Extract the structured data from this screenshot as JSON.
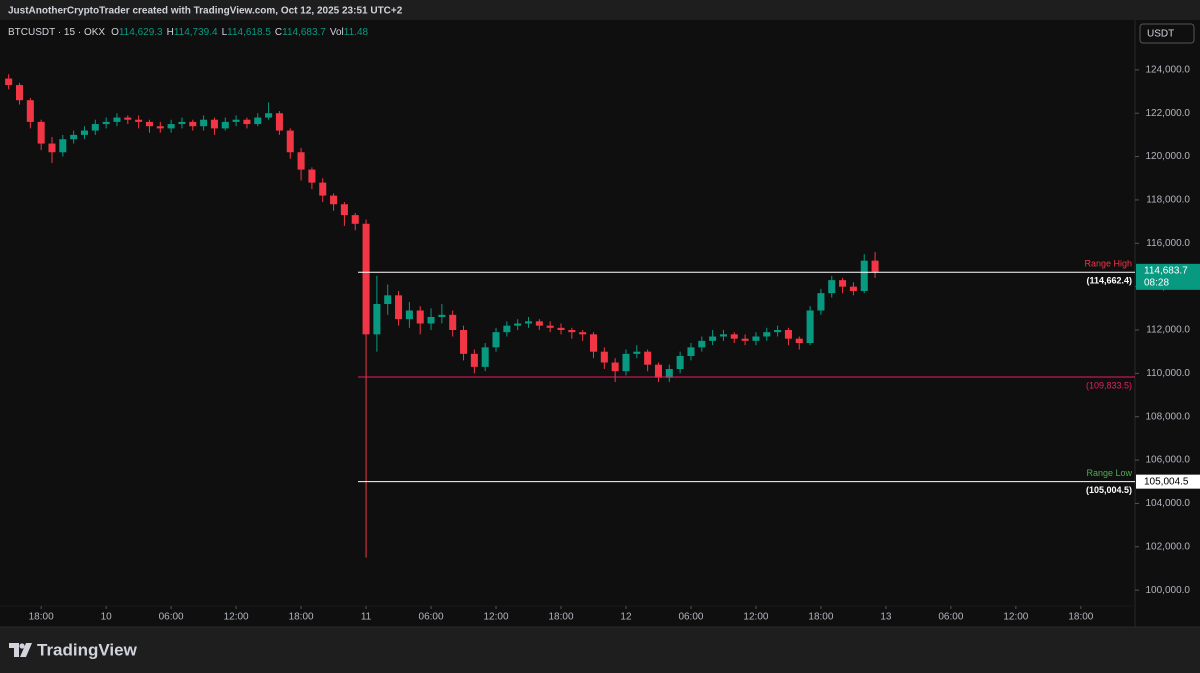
{
  "header": {
    "credit": "JustAnotherCryptoTrader created with TradingView.com, Oct 12, 2025 23:51 UTC+2",
    "symbol": "BTCUSDT · 15 · OKX",
    "legend": [
      {
        "key": "O",
        "value": "114,629.3"
      },
      {
        "key": "H",
        "value": "114,739.4"
      },
      {
        "key": "L",
        "value": "114,618.5"
      },
      {
        "key": "C",
        "value": "114,683.7"
      },
      {
        "key": "Vol",
        "value": "11.48"
      }
    ],
    "currency": "USDT"
  },
  "footer": {
    "brand": "TradingView"
  },
  "chart_data": {
    "type": "candlestick",
    "up_color": "#089981",
    "down_color": "#f23645",
    "x": [
      -3,
      -2,
      -1,
      0,
      1,
      2,
      3,
      4,
      5,
      6,
      7,
      8,
      9,
      10,
      11,
      12,
      13,
      14,
      15,
      16,
      17,
      18,
      19,
      20,
      21,
      22,
      23,
      24,
      25,
      26,
      27,
      28,
      29,
      30,
      31,
      32,
      33,
      34,
      35,
      36,
      37,
      38,
      39,
      40,
      41,
      42,
      43,
      44,
      45,
      46,
      47,
      48,
      49,
      50,
      51,
      52,
      53,
      54,
      55,
      56,
      57,
      58,
      59,
      60,
      61,
      62,
      63,
      64,
      65,
      66,
      67,
      68,
      69,
      70,
      71,
      72,
      73,
      74,
      75,
      76,
      77
    ],
    "open": [
      123600,
      123300,
      122600,
      121600,
      120600,
      120200,
      120800,
      121000,
      121200,
      121500,
      121600,
      121800,
      121700,
      121600,
      121400,
      121300,
      121500,
      121600,
      121400,
      121700,
      121300,
      121600,
      121700,
      121500,
      121800,
      122000,
      121200,
      120200,
      119400,
      118800,
      118200,
      117800,
      117300,
      116900,
      111800,
      113200,
      113600,
      112500,
      112900,
      112300,
      112600,
      112700,
      112000,
      110900,
      110300,
      111200,
      111900,
      112200,
      112300,
      112400,
      112200,
      112100,
      112000,
      111900,
      111800,
      111000,
      110500,
      110100,
      110900,
      111000,
      110400,
      109800,
      110200,
      110800,
      111200,
      111500,
      111700,
      111800,
      111600,
      111500,
      111700,
      111900,
      112000,
      111600,
      111400,
      112900,
      113700,
      114300,
      114000,
      113800,
      115200
    ],
    "high": [
      123800,
      123400,
      122700,
      121700,
      120900,
      121000,
      121200,
      121400,
      121700,
      121800,
      122000,
      121900,
      121900,
      121700,
      121600,
      121700,
      121800,
      121700,
      121900,
      121800,
      121800,
      121900,
      121800,
      122000,
      122500,
      122100,
      121300,
      120400,
      119500,
      119000,
      118300,
      117900,
      117400,
      117100,
      114500,
      114100,
      113800,
      113300,
      113100,
      113000,
      113200,
      112900,
      112200,
      111100,
      111400,
      112100,
      112400,
      112500,
      112600,
      112500,
      112400,
      112300,
      112100,
      112000,
      111900,
      111200,
      110700,
      111100,
      111300,
      111100,
      110500,
      110400,
      111000,
      111400,
      111700,
      112000,
      112000,
      111900,
      111800,
      111900,
      112100,
      112200,
      112100,
      111700,
      113100,
      113900,
      114500,
      114400,
      114200,
      115500,
      115600
    ],
    "low": [
      123100,
      122400,
      121300,
      120300,
      119700,
      120000,
      120600,
      120800,
      121000,
      121300,
      121400,
      121500,
      121300,
      121100,
      121100,
      121100,
      121300,
      121200,
      121200,
      121000,
      121200,
      121400,
      121300,
      121400,
      121700,
      121000,
      119900,
      118900,
      118500,
      117900,
      117500,
      116800,
      116600,
      101500,
      111000,
      112700,
      112200,
      112100,
      111800,
      112000,
      112300,
      111700,
      110600,
      110000,
      110100,
      111000,
      111700,
      112000,
      112100,
      112000,
      111900,
      111800,
      111600,
      111500,
      110700,
      110200,
      109600,
      109900,
      110700,
      110100,
      109600,
      109600,
      110000,
      110600,
      111000,
      111300,
      111500,
      111400,
      111300,
      111300,
      111500,
      111700,
      111300,
      111100,
      111300,
      112700,
      113500,
      113700,
      113600,
      113700,
      114400
    ],
    "close": [
      123300,
      122600,
      121600,
      120600,
      120200,
      120800,
      121000,
      121200,
      121500,
      121600,
      121800,
      121700,
      121600,
      121400,
      121300,
      121500,
      121600,
      121400,
      121700,
      121300,
      121600,
      121700,
      121500,
      121800,
      122000,
      121200,
      120200,
      119400,
      118800,
      118200,
      117800,
      117300,
      116900,
      111800,
      113200,
      113600,
      112500,
      112900,
      112300,
      112600,
      112700,
      112000,
      110900,
      110300,
      111200,
      111900,
      112200,
      112300,
      112400,
      112200,
      112100,
      112000,
      111900,
      111800,
      111000,
      110500,
      110100,
      110900,
      111000,
      110400,
      109800,
      110200,
      110800,
      111200,
      111500,
      111700,
      111800,
      111600,
      111500,
      111700,
      111900,
      112000,
      111600,
      111400,
      112900,
      113700,
      114300,
      114000,
      113800,
      115200,
      114683.7
    ],
    "xlim": [
      -3.8,
      101
    ],
    "xticks": [
      {
        "value": 0,
        "label": "18:00"
      },
      {
        "value": 6,
        "label": "10"
      },
      {
        "value": 12,
        "label": "06:00"
      },
      {
        "value": 18,
        "label": "12:00"
      },
      {
        "value": 24,
        "label": "18:00"
      },
      {
        "value": 30,
        "label": "11"
      },
      {
        "value": 36,
        "label": "06:00"
      },
      {
        "value": 42,
        "label": "12:00"
      },
      {
        "value": 48,
        "label": "18:00"
      },
      {
        "value": 54,
        "label": "12"
      },
      {
        "value": 60,
        "label": "06:00"
      },
      {
        "value": 66,
        "label": "12:00"
      },
      {
        "value": 72,
        "label": "18:00"
      },
      {
        "value": 78,
        "label": "13"
      },
      {
        "value": 84,
        "label": "06:00"
      },
      {
        "value": 90,
        "label": "12:00"
      },
      {
        "value": 96,
        "label": "18:00"
      }
    ],
    "ylim": [
      98300,
      126300
    ],
    "yticks": [
      {
        "value": 100000,
        "label": "100,000.0"
      },
      {
        "value": 102000,
        "label": "102,000.0"
      },
      {
        "value": 104000,
        "label": "104,000.0"
      },
      {
        "value": 106000,
        "label": "106,000.0"
      },
      {
        "value": 108000,
        "label": "108,000.0"
      },
      {
        "value": 110000,
        "label": "110,000.0"
      },
      {
        "value": 112000,
        "label": "112,000.0"
      },
      {
        "value": 114000,
        "label": "114,000.0"
      },
      {
        "value": 116000,
        "label": "116,000.0"
      },
      {
        "value": 118000,
        "label": "118,000.0"
      },
      {
        "value": 120000,
        "label": "120,000.0"
      },
      {
        "value": 122000,
        "label": "122,000.0"
      },
      {
        "value": 124000,
        "label": "124,000.0"
      }
    ],
    "levels": [
      {
        "name": "Range High",
        "name_color": "#f23645",
        "value": 114662.4,
        "value_label": "(114,662.4)",
        "color": "#ffffff",
        "label_color": "#ffffff"
      },
      {
        "value": 109833.5,
        "value_label": "(109,833.5)",
        "color": "#e91e63",
        "label_color": "#e91e63"
      },
      {
        "name": "Range Low",
        "name_color": "#4caf50",
        "value": 105004.5,
        "value_label": "(105,004.5)",
        "color": "#ffffff",
        "label_color": "#ffffff",
        "axis_label": "105,004.5"
      }
    ],
    "last_price": {
      "value": 114683.7,
      "label": "114,683.7",
      "countdown": "08:28",
      "color": "#089981"
    }
  }
}
